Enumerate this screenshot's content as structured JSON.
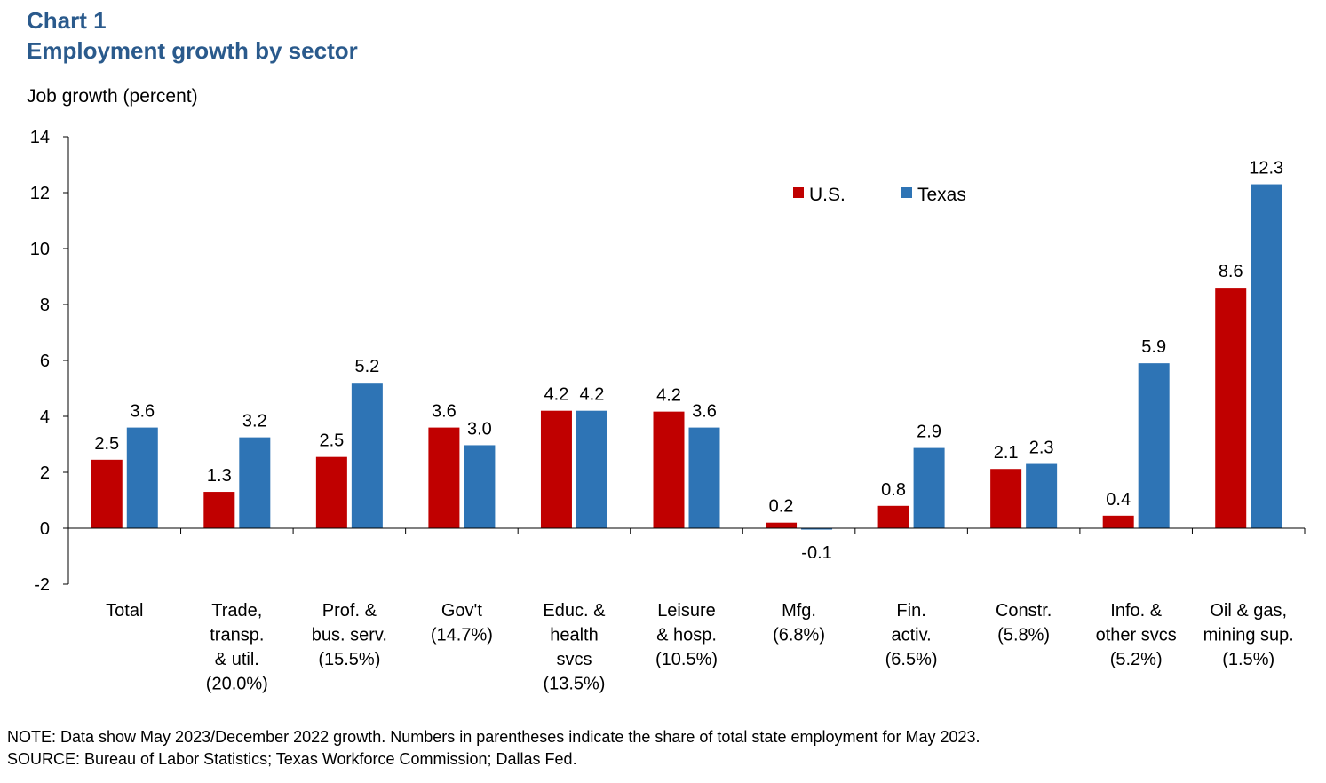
{
  "chart_data": {
    "type": "bar",
    "title": "Chart 1",
    "subtitle": "Employment growth by sector",
    "ylabel": "Job growth (percent)",
    "ylim": [
      -2,
      14
    ],
    "yticks": [
      -2,
      0,
      2,
      4,
      6,
      8,
      10,
      12,
      14
    ],
    "legend_position": "top-right",
    "categories": [
      [
        "Total"
      ],
      [
        "Trade,",
        "transp.",
        "& util.",
        "(20.0%)"
      ],
      [
        "Prof. &",
        "bus. serv.",
        "(15.5%)"
      ],
      [
        "Gov't",
        "(14.7%)"
      ],
      [
        "Educ. &",
        "health",
        "svcs",
        "(13.5%)"
      ],
      [
        "Leisure",
        "& hosp.",
        "(10.5%)"
      ],
      [
        "Mfg.",
        "(6.8%)"
      ],
      [
        "Fin.",
        "activ.",
        "(6.5%)"
      ],
      [
        "Constr.",
        "(5.8%)"
      ],
      [
        "Info. &",
        "other svcs",
        "(5.2%)"
      ],
      [
        "Oil & gas,",
        "mining sup.",
        "(1.5%)"
      ]
    ],
    "series": [
      {
        "name": "U.S.",
        "color": "#c00000",
        "values": [
          2.45,
          1.3,
          2.55,
          3.6,
          4.2,
          4.17,
          0.2,
          0.8,
          2.12,
          0.45,
          8.6
        ],
        "labels": [
          "2.5",
          "1.3",
          "2.5",
          "3.6",
          "4.2",
          "4.2",
          "0.2",
          "0.8",
          "2.1",
          "0.4",
          "8.6"
        ]
      },
      {
        "name": "Texas",
        "color": "#2e74b5",
        "values": [
          3.6,
          3.25,
          5.2,
          2.97,
          4.2,
          3.6,
          -0.05,
          2.87,
          2.3,
          5.9,
          12.3
        ],
        "labels": [
          "3.6",
          "3.2",
          "5.2",
          "3.0",
          "4.2",
          "3.6",
          "-0.1",
          "2.9",
          "2.3",
          "5.9",
          "12.3"
        ]
      }
    ]
  },
  "notes": {
    "note": "NOTE: Data show May 2023/December 2022 growth. Numbers in parentheses indicate the share of total state employment for May 2023.",
    "source": "SOURCE: Bureau of Labor Statistics; Texas Workforce Commission; Dallas Fed."
  }
}
